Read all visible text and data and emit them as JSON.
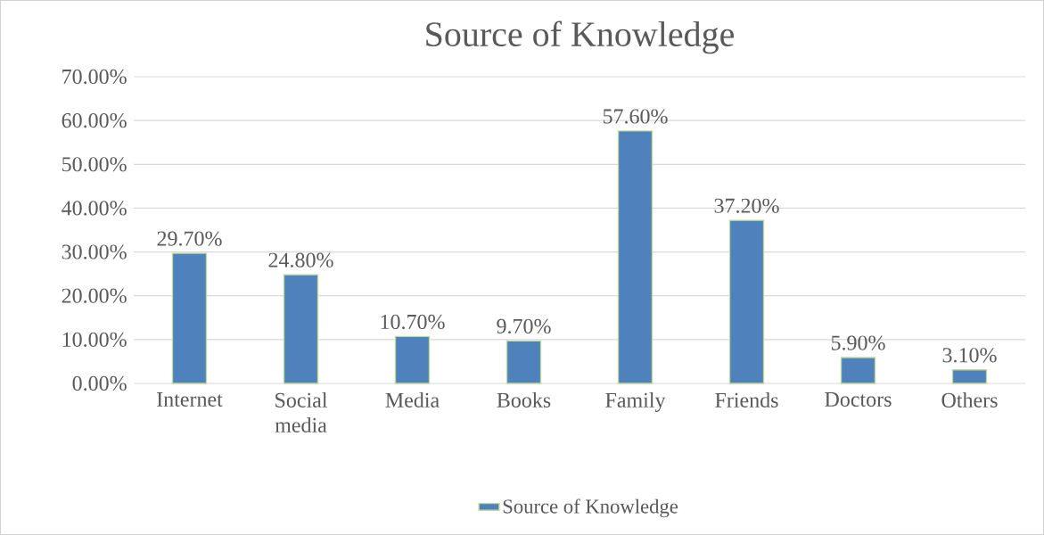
{
  "chart_data": {
    "type": "bar",
    "title": "Source of Knowledge",
    "categories": [
      "Internet",
      "Social media",
      "Media",
      "Books",
      "Family",
      "Friends",
      "Doctors",
      "Others"
    ],
    "series": [
      {
        "name": "Source of Knowledge",
        "color": "#4f81bd",
        "values": [
          29.7,
          24.8,
          10.7,
          9.7,
          57.6,
          37.2,
          5.9,
          3.1
        ],
        "value_labels": [
          "29.70%",
          "24.80%",
          "10.70%",
          "9.70%",
          "57.60%",
          "37.20%",
          "5.90%",
          "3.10%"
        ]
      }
    ],
    "ylim": [
      0,
      70
    ],
    "yticks": [
      {
        "value": 0,
        "label": "0.00%"
      },
      {
        "value": 10,
        "label": "10.00%"
      },
      {
        "value": 20,
        "label": "20.00%"
      },
      {
        "value": 30,
        "label": "30.00%"
      },
      {
        "value": 40,
        "label": "40.00%"
      },
      {
        "value": 50,
        "label": "50.00%"
      },
      {
        "value": 60,
        "label": "60.00%"
      },
      {
        "value": 70,
        "label": "70.00%"
      }
    ],
    "grid": "y",
    "legend": "bottom"
  }
}
